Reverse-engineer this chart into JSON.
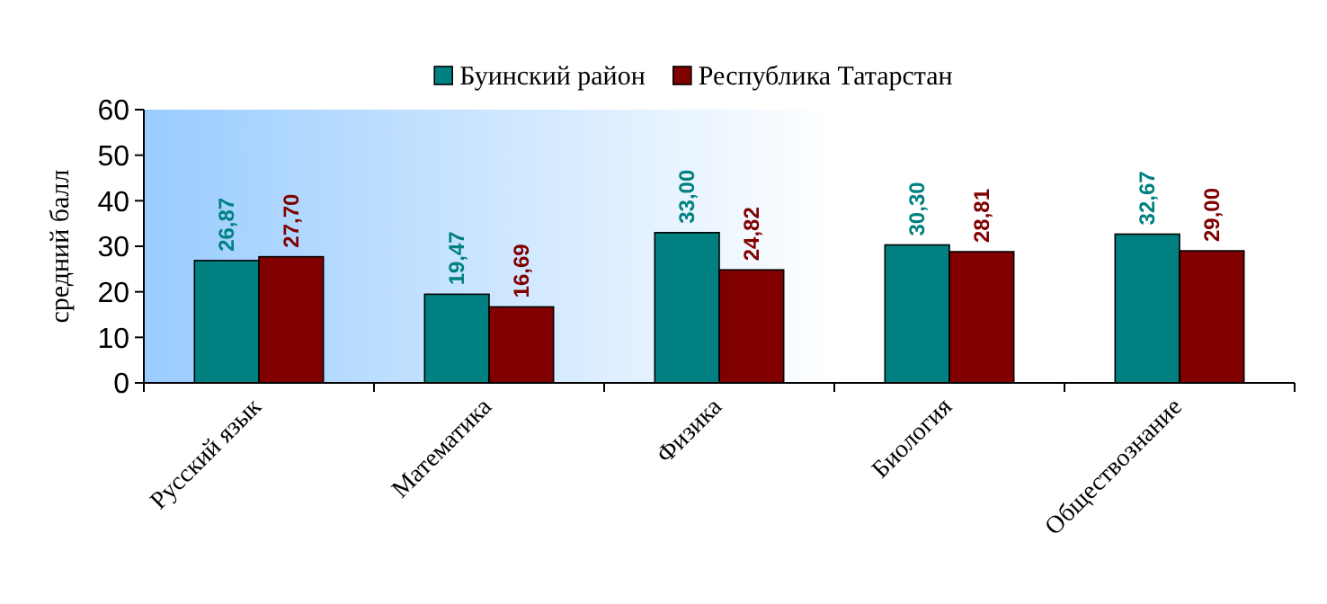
{
  "chart_data": {
    "type": "bar",
    "ylabel": "средний балл",
    "categories": [
      "Русский язык",
      "Математика",
      "Физика",
      "Биология",
      "Обществознание"
    ],
    "series": [
      {
        "name": "Буинский район",
        "color": "#008080",
        "values": [
          26.87,
          19.47,
          33.0,
          30.3,
          32.67
        ],
        "value_labels": [
          "26,87",
          "19,47",
          "33,00",
          "30,30",
          "32,67"
        ]
      },
      {
        "name": "Республика Татарстан",
        "color": "#800000",
        "values": [
          27.7,
          16.69,
          24.82,
          28.81,
          29.0
        ],
        "value_labels": [
          "27,70",
          "16,69",
          "24,82",
          "28,81",
          "29,00"
        ]
      }
    ],
    "ylim": [
      0,
      60
    ],
    "yticks": [
      0,
      10,
      20,
      30,
      40,
      50,
      60
    ],
    "legend": "top",
    "grid": false
  }
}
